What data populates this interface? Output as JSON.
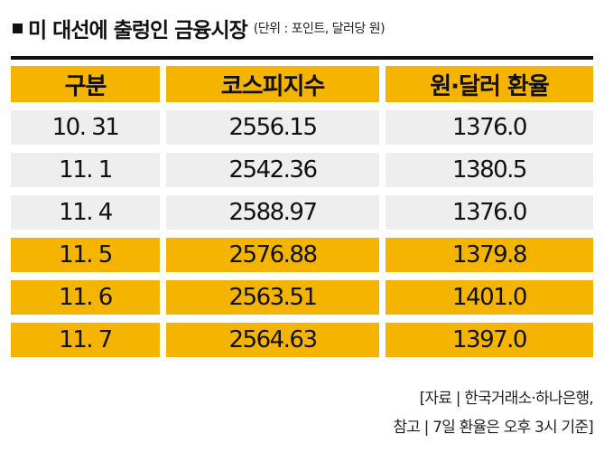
{
  "title": {
    "text": "미 대선에 출렁인 금융시장",
    "unit": "(단위 : 포인트, 달러당 원)"
  },
  "table": {
    "headers": [
      "구분",
      "코스피지수",
      "원·달러 환율"
    ],
    "rows": [
      {
        "date": "10. 31",
        "kospi": "2556.15",
        "fx": "1376.0"
      },
      {
        "date": "11. 1",
        "kospi": "2542.36",
        "fx": "1380.5"
      },
      {
        "date": "11. 4",
        "kospi": "2588.97",
        "fx": "1376.0"
      },
      {
        "date": "11. 5",
        "kospi": "2576.88",
        "fx": "1379.8"
      },
      {
        "date": "11. 6",
        "kospi": "2563.51",
        "fx": "1401.0"
      },
      {
        "date": "11. 7",
        "kospi": "2564.63",
        "fx": "1397.0"
      }
    ]
  },
  "source": {
    "line1": "[자료 | 한국거래소·하나은행,",
    "line2": "참고 | 7일 환율은 오후 3시 기준]"
  },
  "colors": {
    "highlight": "#f4b400",
    "row_bg": "#eeeeee",
    "text": "#111111"
  }
}
